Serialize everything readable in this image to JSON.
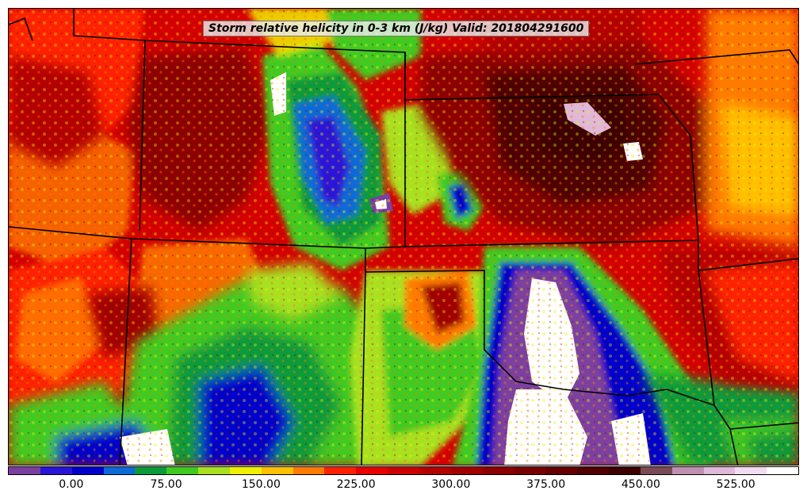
{
  "title": "Storm relative helicity in 0-3 km (J/kg) Valid: 201804291600",
  "colorbar": {
    "colors": [
      "#7b3fa0",
      "#2a14d8",
      "#0000cc",
      "#0e6ad8",
      "#0a9a3a",
      "#3fca20",
      "#a8e020",
      "#f0f000",
      "#ffc000",
      "#ff7a00",
      "#ff2000",
      "#e80000",
      "#cc0000",
      "#b40000",
      "#a00000",
      "#8c0000",
      "#780000",
      "#640000",
      "#500000",
      "#3c0000",
      "#7a4a55",
      "#c090b0",
      "#e0b8d8",
      "#f4dcf0",
      "#ffffff"
    ],
    "tick_labels": [
      "0.00",
      "75.00",
      "150.00",
      "225.00",
      "300.00",
      "375.00",
      "450.00",
      "525.00"
    ],
    "tick_values": [
      0,
      75,
      150,
      225,
      300,
      375,
      450,
      525
    ],
    "range": [
      -50,
      575
    ]
  }
}
